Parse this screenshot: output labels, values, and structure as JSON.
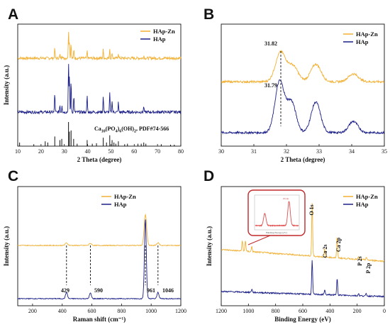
{
  "colors": {
    "hap_zn": "#F2B136",
    "hap": "#1B1F86",
    "ref": "#111111",
    "inset_border": "#C0282A",
    "inset_trace": "#E05050"
  },
  "legend": {
    "zn": "HAp-Zn",
    "hap": "HAp"
  },
  "chart_data": [
    {
      "panel": "A",
      "type": "line",
      "xlabel": "2 Theta (degree)",
      "ylabel": "Intensity (a.u.)",
      "xlim": [
        10,
        80
      ],
      "xticks": [
        "10",
        "20",
        "30",
        "40",
        "50",
        "60",
        "70",
        "80"
      ],
      "series": [
        {
          "name": "HAp-Zn",
          "peaks": [
            [
              25.9,
              0.35
            ],
            [
              28.1,
              0.12
            ],
            [
              29.0,
              0.12
            ],
            [
              31.8,
              1.0
            ],
            [
              32.2,
              0.6
            ],
            [
              32.9,
              0.55
            ],
            [
              34.1,
              0.3
            ],
            [
              39.8,
              0.25
            ],
            [
              46.7,
              0.3
            ],
            [
              49.5,
              0.35
            ],
            [
              50.5,
              0.2
            ],
            [
              53.2,
              0.18
            ],
            [
              64.1,
              0.1
            ]
          ]
        },
        {
          "name": "HAp",
          "peaks": [
            [
              25.9,
              0.4
            ],
            [
              28.1,
              0.15
            ],
            [
              29.0,
              0.15
            ],
            [
              31.8,
              1.0
            ],
            [
              32.2,
              0.75
            ],
            [
              32.9,
              0.65
            ],
            [
              34.1,
              0.35
            ],
            [
              39.8,
              0.35
            ],
            [
              46.7,
              0.35
            ],
            [
              49.5,
              0.4
            ],
            [
              50.5,
              0.25
            ],
            [
              53.2,
              0.2
            ],
            [
              64.1,
              0.12
            ]
          ]
        }
      ],
      "reference": {
        "label_parts": [
          "Ca",
          "10",
          "(PO",
          "4",
          ")",
          "6",
          "(OH)",
          "2",
          ", PDF#74-566"
        ],
        "lines": [
          [
            10.8,
            0.15
          ],
          [
            16.9,
            0.08
          ],
          [
            21.8,
            0.2
          ],
          [
            22.9,
            0.15
          ],
          [
            25.9,
            0.4
          ],
          [
            28.1,
            0.25
          ],
          [
            28.9,
            0.3
          ],
          [
            31.8,
            1.0
          ],
          [
            32.2,
            0.6
          ],
          [
            32.9,
            0.65
          ],
          [
            34.0,
            0.3
          ],
          [
            35.5,
            0.1
          ],
          [
            39.8,
            0.25
          ],
          [
            42.0,
            0.1
          ],
          [
            43.8,
            0.12
          ],
          [
            46.7,
            0.35
          ],
          [
            48.1,
            0.15
          ],
          [
            49.5,
            0.45
          ],
          [
            50.5,
            0.25
          ],
          [
            51.3,
            0.15
          ],
          [
            52.1,
            0.1
          ],
          [
            53.2,
            0.2
          ],
          [
            55.9,
            0.08
          ],
          [
            57.1,
            0.1
          ],
          [
            61.6,
            0.1
          ],
          [
            63.0,
            0.1
          ],
          [
            64.1,
            0.15
          ],
          [
            65.0,
            0.1
          ],
          [
            71.6,
            0.08
          ],
          [
            75.6,
            0.06
          ],
          [
            77.2,
            0.06
          ]
        ]
      }
    },
    {
      "panel": "B",
      "type": "line",
      "xlabel": "2 Theta (degree)",
      "ylabel": "",
      "xlim": [
        30,
        35
      ],
      "xticks": [
        "30",
        "31",
        "32",
        "33",
        "34",
        "35"
      ],
      "annotations": [
        "31.82",
        "31.79"
      ],
      "series": [
        {
          "name": "HAp-Zn",
          "peaks": [
            [
              31.82,
              0.75
            ],
            [
              32.2,
              0.4
            ],
            [
              32.9,
              0.45
            ],
            [
              34.05,
              0.2
            ]
          ]
        },
        {
          "name": "HAp",
          "peaks": [
            [
              31.79,
              1.0
            ],
            [
              32.15,
              0.6
            ],
            [
              32.9,
              0.6
            ],
            [
              34.05,
              0.22
            ]
          ]
        }
      ]
    },
    {
      "panel": "C",
      "type": "line",
      "xlabel": "Raman shift (cm⁻¹)",
      "ylabel": "Intensity (a.u.)",
      "xlim": [
        100,
        1200
      ],
      "xticks": [
        "200",
        "400",
        "600",
        "800",
        "1000",
        "1200"
      ],
      "peak_labels": [
        "429",
        "590",
        "961",
        "1046"
      ],
      "series": [
        {
          "name": "HAp-Zn",
          "peaks": [
            [
              429,
              0.05
            ],
            [
              590,
              0.04
            ],
            [
              961,
              0.6
            ],
            [
              1046,
              0.05
            ]
          ]
        },
        {
          "name": "HAp",
          "peaks": [
            [
              429,
              0.08
            ],
            [
              590,
              0.07
            ],
            [
              961,
              1.0
            ],
            [
              1046,
              0.08
            ]
          ]
        }
      ]
    },
    {
      "panel": "D",
      "type": "line",
      "xlabel": "Binding Energy (eV)",
      "ylabel": "Intensity (a.u.)",
      "xlim": [
        1200,
        0
      ],
      "xticks": [
        "1200",
        "1000",
        "800",
        "600",
        "400",
        "200",
        "0"
      ],
      "peak_labels": [
        "O 1s",
        "Ca 2s",
        "Ca 2p",
        "P 2s",
        "P 2p"
      ],
      "inset": {
        "title": "Zn 2p",
        "xlabel": "Binding Energy (eV)"
      },
      "series": [
        {
          "name": "HAp-Zn",
          "peaks": [
            [
              531,
              1.0
            ],
            [
              439,
              0.15
            ],
            [
              347,
              0.4
            ],
            [
              190,
              0.05
            ],
            [
              133,
              0.05
            ],
            [
              1022,
              0.2
            ],
            [
              1045,
              0.2
            ],
            [
              975,
              0.1
            ]
          ]
        },
        {
          "name": "HAp",
          "peaks": [
            [
              531,
              0.8
            ],
            [
              439,
              0.12
            ],
            [
              347,
              0.4
            ],
            [
              190,
              0.05
            ],
            [
              133,
              0.05
            ],
            [
              975,
              0.08
            ]
          ]
        }
      ]
    }
  ]
}
